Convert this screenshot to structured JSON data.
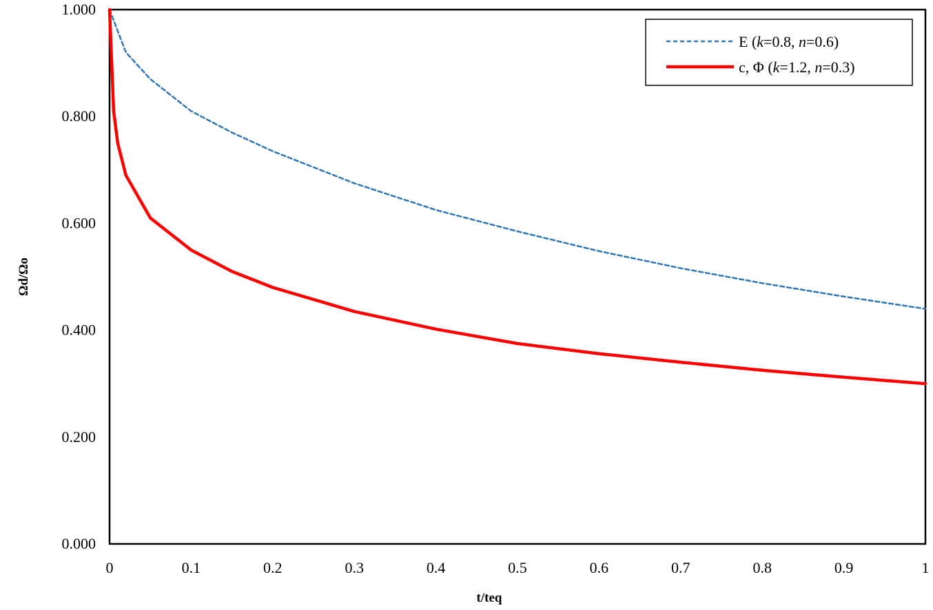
{
  "chart_data": {
    "type": "line",
    "title": "",
    "xlabel": "t/teq",
    "ylabel": "Ωd/Ωo",
    "xlim": [
      0,
      1
    ],
    "ylim": [
      0,
      1
    ],
    "x_ticks": [
      "0",
      "0.1",
      "0.2",
      "0.3",
      "0.4",
      "0.5",
      "0.6",
      "0.7",
      "0.8",
      "0.9",
      "1"
    ],
    "y_ticks": [
      "0.000",
      "0.200",
      "0.400",
      "0.600",
      "0.800",
      "1.000"
    ],
    "grid": false,
    "legend_position": "top-right",
    "series": [
      {
        "name": "E (k=0.8, n=0.6)",
        "legend_parts": [
          {
            "text": "E (",
            "italic": false
          },
          {
            "text": "k",
            "italic": true
          },
          {
            "text": "=0.8, ",
            "italic": false
          },
          {
            "text": "n",
            "italic": true
          },
          {
            "text": "=0.6)",
            "italic": false
          }
        ],
        "color": "#2e75b6",
        "style": "dashed",
        "k": 0.8,
        "n": 0.6,
        "x": [
          0,
          0.02,
          0.05,
          0.1,
          0.15,
          0.2,
          0.3,
          0.4,
          0.5,
          0.6,
          0.7,
          0.8,
          0.9,
          1.0
        ],
        "y": [
          1.0,
          0.92,
          0.87,
          0.81,
          0.77,
          0.735,
          0.675,
          0.625,
          0.585,
          0.548,
          0.516,
          0.488,
          0.463,
          0.44
        ]
      },
      {
        "name": "c, Φ (k=1.2, n=0.3)",
        "legend_parts": [
          {
            "text": "c, Φ (",
            "italic": false
          },
          {
            "text": "k",
            "italic": true
          },
          {
            "text": "=1.2, ",
            "italic": false
          },
          {
            "text": "n",
            "italic": true
          },
          {
            "text": "=0.3)",
            "italic": false
          }
        ],
        "color": "#ff0000",
        "style": "solid",
        "k": 1.2,
        "n": 0.3,
        "x": [
          0,
          0.005,
          0.01,
          0.02,
          0.05,
          0.1,
          0.15,
          0.2,
          0.3,
          0.4,
          0.5,
          0.6,
          0.7,
          0.8,
          0.9,
          1.0
        ],
        "y": [
          1.0,
          0.81,
          0.75,
          0.69,
          0.61,
          0.55,
          0.51,
          0.48,
          0.435,
          0.402,
          0.375,
          0.356,
          0.34,
          0.325,
          0.312,
          0.3
        ]
      }
    ]
  }
}
